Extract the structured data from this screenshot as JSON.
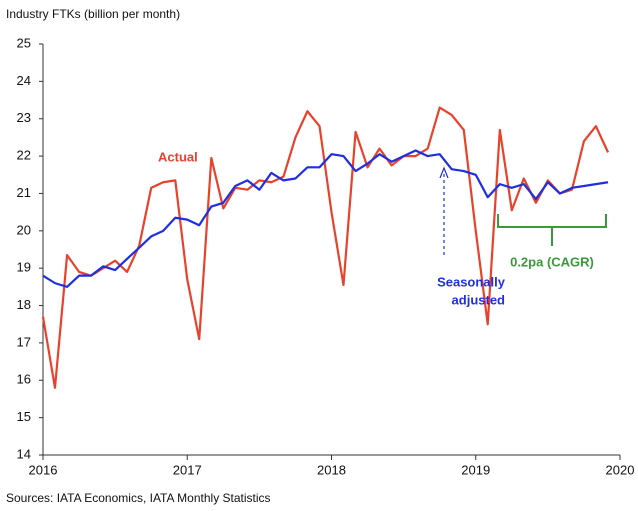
{
  "chart_data": {
    "type": "line",
    "ylabel": "Industry FTKs (billion per month)",
    "source": "Sources: IATA Economics, IATA Monthly Statistics",
    "x": [
      2016,
      2016.083,
      2016.167,
      2016.25,
      2016.333,
      2016.417,
      2016.5,
      2016.583,
      2016.667,
      2016.75,
      2016.833,
      2016.917,
      2017,
      2017.083,
      2017.167,
      2017.25,
      2017.333,
      2017.417,
      2017.5,
      2017.583,
      2017.667,
      2017.75,
      2017.833,
      2017.917,
      2018,
      2018.083,
      2018.167,
      2018.25,
      2018.333,
      2018.417,
      2018.5,
      2018.583,
      2018.667,
      2018.75,
      2018.833,
      2018.917,
      2019,
      2019.083,
      2019.167,
      2019.25,
      2019.333,
      2019.417,
      2019.5,
      2019.583,
      2019.667,
      2019.75,
      2019.833,
      2019.917
    ],
    "series": [
      {
        "name": "Actual",
        "color": "#e8412c",
        "values": [
          17.7,
          15.8,
          19.35,
          18.9,
          18.8,
          19.0,
          19.2,
          18.9,
          19.6,
          21.15,
          21.3,
          21.35,
          18.7,
          17.1,
          21.95,
          20.6,
          21.15,
          21.1,
          21.35,
          21.3,
          21.45,
          22.5,
          23.2,
          22.8,
          20.5,
          18.55,
          22.65,
          21.7,
          22.2,
          21.75,
          22.0,
          22.0,
          22.2,
          23.3,
          23.1,
          22.7,
          20.0,
          17.5,
          22.7,
          20.55,
          21.4,
          20.75,
          21.35,
          21.0,
          21.1,
          22.4,
          22.8,
          22.1
        ]
      },
      {
        "name": "Seasonally adjusted",
        "color": "#1f2fe0",
        "values": [
          18.8,
          18.6,
          18.5,
          18.8,
          18.8,
          19.05,
          18.95,
          19.25,
          19.55,
          19.85,
          20.0,
          20.35,
          20.3,
          20.15,
          20.65,
          20.75,
          21.2,
          21.35,
          21.1,
          21.55,
          21.35,
          21.4,
          21.7,
          21.7,
          22.05,
          22.0,
          21.6,
          21.8,
          22.05,
          21.85,
          22.0,
          22.15,
          22.0,
          22.05,
          21.65,
          21.6,
          21.5,
          20.9,
          21.25,
          21.15,
          21.25,
          20.85,
          21.3,
          21.0,
          21.15,
          21.2,
          21.25,
          21.3
        ]
      }
    ],
    "annotations": [
      {
        "lines": [
          "Actual"
        ],
        "color": "#e8412c"
      },
      {
        "lines": [
          "Seasonally",
          "adjusted"
        ],
        "color": "#1f2fe0"
      },
      {
        "lines": [
          "0.2pa (CAGR)"
        ],
        "color": "#3a9a3a"
      }
    ],
    "xlim": [
      2016,
      2020
    ],
    "xticks": [
      2016,
      2017,
      2018,
      2019,
      2020
    ],
    "ylim": [
      14,
      25
    ],
    "yticks": [
      14,
      15,
      16,
      17,
      18,
      19,
      20,
      21,
      22,
      23,
      24,
      25
    ],
    "grid": false
  }
}
